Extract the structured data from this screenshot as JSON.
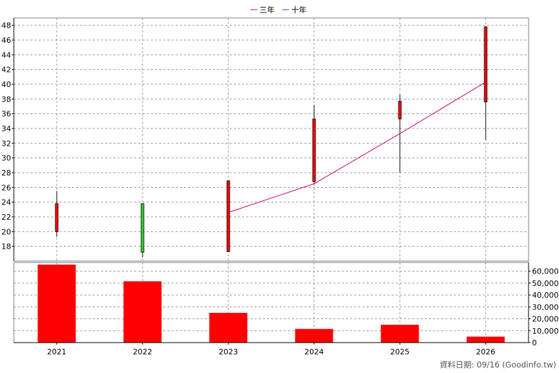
{
  "chart_data": [
    {
      "type": "candlestick",
      "legend": [
        {
          "label": "三年",
          "color": "#cc0066"
        },
        {
          "label": "十年",
          "color": "#6633cc"
        }
      ],
      "legend_placement": "top-center",
      "categories": [
        "2021",
        "2022",
        "2023",
        "2024",
        "2025",
        "2026"
      ],
      "ylim": [
        16,
        49
      ],
      "yticks": [
        18,
        20,
        22,
        24,
        26,
        28,
        30,
        32,
        34,
        36,
        38,
        40,
        42,
        44,
        46,
        48
      ],
      "grid": true,
      "candles": [
        {
          "year": "2021",
          "open": 20.0,
          "close": 23.8,
          "high": 25.5,
          "low": 19.3
        },
        {
          "year": "2022",
          "open": 23.8,
          "close": 17.2,
          "high": 23.8,
          "low": 16.5
        },
        {
          "year": "2023",
          "open": 17.3,
          "close": 26.9,
          "high": 26.9,
          "low": 17.2
        },
        {
          "year": "2024",
          "open": 26.8,
          "close": 35.3,
          "high": 37.2,
          "low": 26.5
        },
        {
          "year": "2025",
          "open": 35.3,
          "close": 37.7,
          "high": 38.6,
          "low": 28.0
        },
        {
          "year": "2026",
          "open": 37.6,
          "close": 47.8,
          "high": 47.8,
          "low": 32.4
        }
      ],
      "up_color": "#ff0000",
      "down_color": "#33cc33",
      "series": [
        {
          "name": "三年",
          "x": [
            "2023",
            "2024",
            "2025",
            "2026"
          ],
          "values": [
            22.6,
            26.5,
            33.3,
            40.3
          ],
          "color": "#cc0066"
        }
      ]
    },
    {
      "type": "bar",
      "categories": [
        "2021",
        "2022",
        "2023",
        "2024",
        "2025",
        "2026"
      ],
      "values": [
        65500,
        51500,
        25000,
        11500,
        15000,
        5000
      ],
      "ylim": [
        0,
        65000
      ],
      "yticks": [
        0,
        10000,
        20000,
        30000,
        40000,
        50000,
        60000
      ],
      "ytick_labels": [
        "0",
        "10,000",
        "20,000",
        "30,000",
        "40,000",
        "50,000",
        "60,000"
      ],
      "bar_color": "#ff0000",
      "grid": true
    }
  ],
  "footer": {
    "source": "資料日期: 09/16 (Goodinfo.tw)"
  }
}
